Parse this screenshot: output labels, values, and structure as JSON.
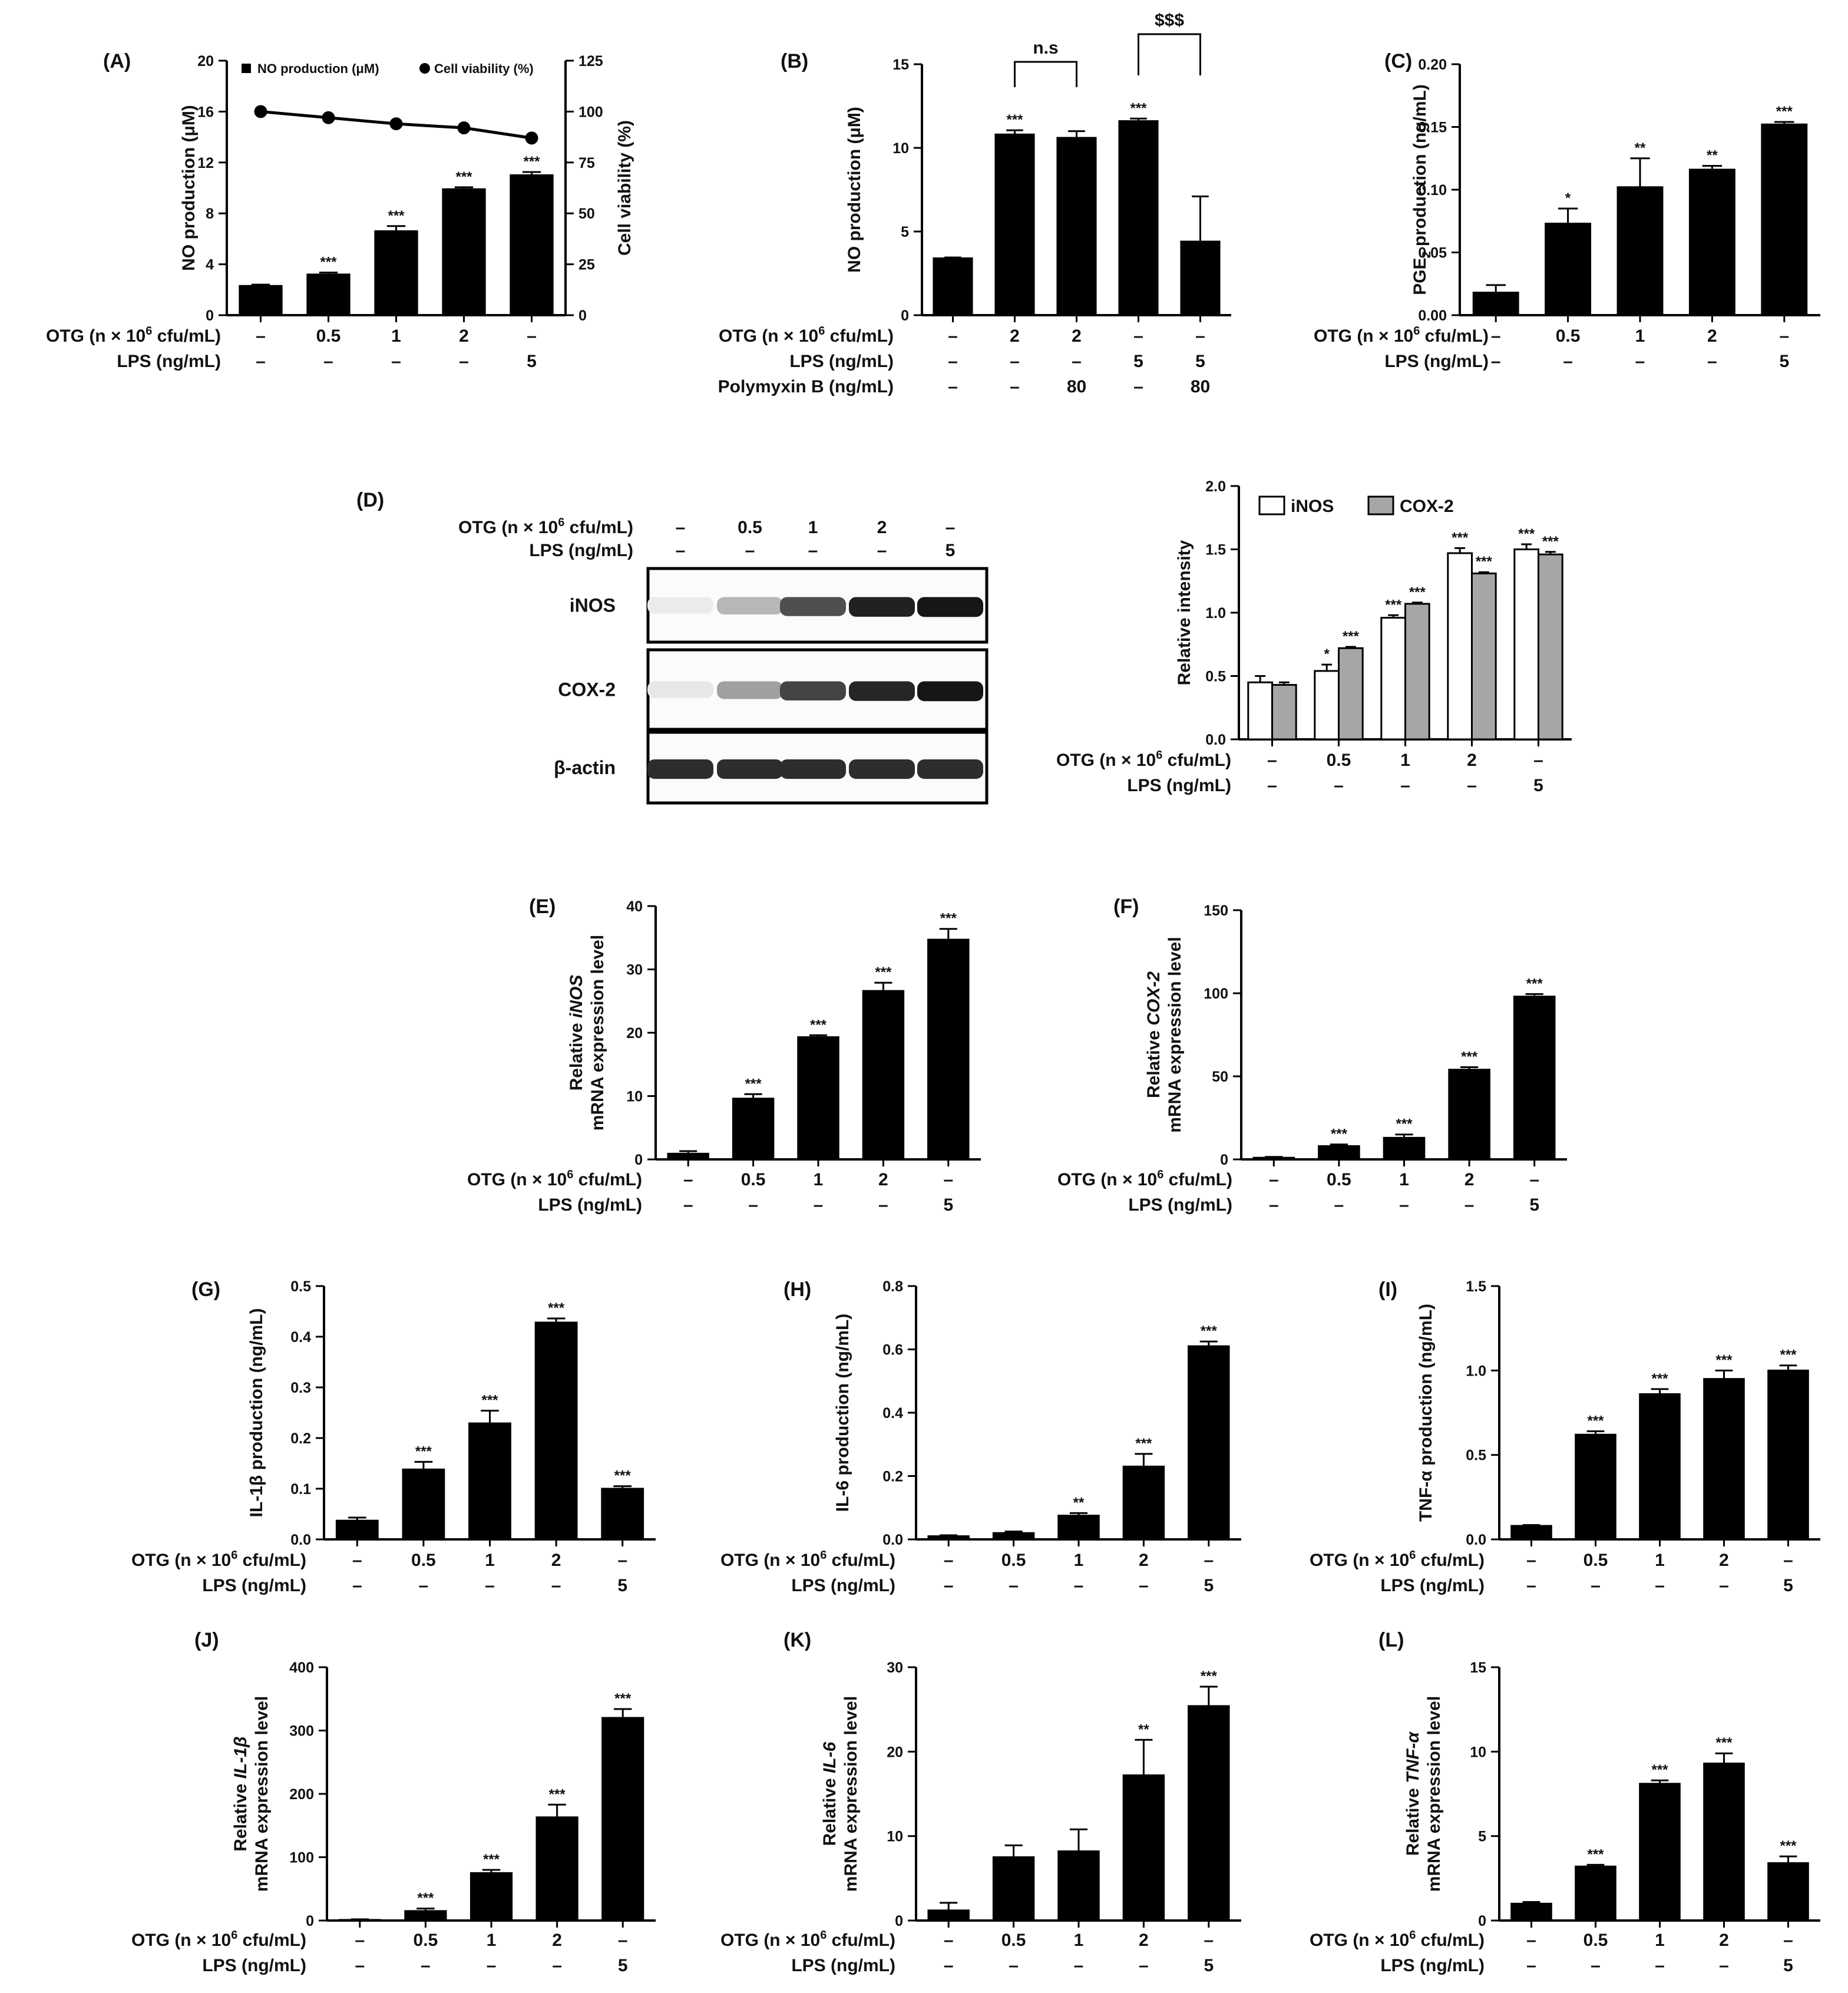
{
  "figure_title": "",
  "colors": {
    "bar": "#000000",
    "inos": "#ffffff",
    "cox2": "#a6a6a6",
    "line": "#000000",
    "axis": "#000000"
  },
  "common": {
    "otg_label_base": "OTG (n × 10",
    "otg_label_sup": "6",
    "otg_label_tail": " cfu/mL)",
    "lps_label": "LPS (ng/mL)",
    "pmb_label": "Polymyxin B (ng/mL)",
    "dash": "–"
  },
  "western_blot": {
    "panel": "(D)",
    "otg_row": [
      "–",
      "0.5",
      "1",
      "2",
      "–"
    ],
    "lps_row": [
      "–",
      "–",
      "–",
      "–",
      "5"
    ],
    "bands": [
      {
        "name": "iNOS",
        "intensities": [
          0.02,
          0.25,
          0.7,
          0.9,
          0.95
        ]
      },
      {
        "name": "COX-2",
        "intensities": [
          0.04,
          0.35,
          0.75,
          0.88,
          0.95
        ]
      },
      {
        "name": "β-actin",
        "intensities": [
          0.85,
          0.85,
          0.85,
          0.85,
          0.85
        ]
      }
    ]
  },
  "chart_data": [
    {
      "id": "A",
      "panel": "(A)",
      "type": "bar",
      "ylabel": "NO production (μM)",
      "ylim": [
        0,
        20
      ],
      "yticks": [
        0,
        4,
        8,
        12,
        16,
        20
      ],
      "y2label": "Cell viability (%)",
      "y2lim": [
        0,
        125
      ],
      "y2ticks": [
        0,
        25,
        50,
        75,
        100,
        125
      ],
      "legend": [
        {
          "marker": "square",
          "label": "NO production (μM)"
        },
        {
          "marker": "circle",
          "label": "Cell viability (%)"
        }
      ],
      "otg": [
        "–",
        "0.5",
        "1",
        "2",
        "–"
      ],
      "lps": [
        "–",
        "–",
        "–",
        "–",
        "5"
      ],
      "series": [
        {
          "name": "NO production (μM)",
          "values": [
            2.3,
            3.2,
            6.6,
            9.9,
            11.0
          ],
          "errors": [
            0.1,
            0.15,
            0.4,
            0.15,
            0.25
          ],
          "sig": [
            "",
            "***",
            "***",
            "***",
            "***"
          ]
        }
      ],
      "line": {
        "name": "Cell viability (%)",
        "values": [
          100,
          97,
          94,
          92,
          87
        ]
      }
    },
    {
      "id": "B",
      "panel": "(B)",
      "type": "bar",
      "ylabel": "NO production (μM)",
      "ylim": [
        0,
        15
      ],
      "yticks": [
        0,
        5,
        10,
        15
      ],
      "otg": [
        "–",
        "2",
        "2",
        "–",
        "–"
      ],
      "lps": [
        "–",
        "–",
        "–",
        "5",
        "5"
      ],
      "pmb": [
        "–",
        "–",
        "80",
        "–",
        "80"
      ],
      "series": [
        {
          "name": "NO production",
          "values": [
            3.4,
            10.8,
            10.6,
            11.6,
            4.4
          ],
          "errors": [
            0.05,
            0.25,
            0.4,
            0.15,
            2.7
          ],
          "sig": [
            "",
            "***",
            "",
            "***",
            ""
          ]
        }
      ],
      "brackets": [
        {
          "from": 1,
          "to": 2,
          "label": "n.s"
        },
        {
          "from": 3,
          "to": 4,
          "label": "$$$"
        }
      ]
    },
    {
      "id": "C",
      "panel": "(C)",
      "type": "bar",
      "ylabel": "PGE",
      "ylabel_sub": "2",
      "ylabel_tail": " production (ng/mL)",
      "ylim": [
        0,
        0.2
      ],
      "yticks": [
        "0.00",
        "0.05",
        "0.10",
        "0.15",
        "0.20"
      ],
      "otg": [
        "–",
        "0.5",
        "1",
        "2",
        "–"
      ],
      "lps": [
        "–",
        "–",
        "–",
        "–",
        "5"
      ],
      "series": [
        {
          "name": "PGE2 production",
          "values": [
            0.018,
            0.073,
            0.102,
            0.116,
            0.152
          ],
          "errors": [
            0.006,
            0.012,
            0.023,
            0.003,
            0.002
          ],
          "sig": [
            "",
            "*",
            "**",
            "**",
            "***"
          ]
        }
      ]
    },
    {
      "id": "D",
      "panel": "",
      "type": "bar",
      "ylabel": "Relative intensity",
      "ylim": [
        0,
        2.0
      ],
      "yticks": [
        "0.0",
        "0.5",
        "1.0",
        "1.5",
        "2.0"
      ],
      "otg": [
        "–",
        "0.5",
        "1",
        "2",
        "–"
      ],
      "lps": [
        "–",
        "–",
        "–",
        "–",
        "5"
      ],
      "legend_position": "top",
      "series": [
        {
          "name": "iNOS",
          "values": [
            0.45,
            0.54,
            0.96,
            1.47,
            1.5
          ],
          "errors": [
            0.05,
            0.05,
            0.02,
            0.04,
            0.04
          ],
          "sig": [
            "",
            "*",
            "***",
            "***",
            "***"
          ]
        },
        {
          "name": "COX-2",
          "values": [
            0.43,
            0.72,
            1.07,
            1.31,
            1.46
          ],
          "errors": [
            0.02,
            0.01,
            0.01,
            0.01,
            0.02
          ],
          "sig": [
            "",
            "***",
            "***",
            "***",
            "***"
          ]
        }
      ]
    },
    {
      "id": "E",
      "panel": "(E)",
      "type": "bar",
      "ylabel_pre": "Relative ",
      "ylabel_italic": "iNOS",
      "ylabel2": "mRNA expression level",
      "ylim": [
        0,
        40
      ],
      "yticks": [
        0,
        10,
        20,
        30,
        40
      ],
      "otg": [
        "–",
        "0.5",
        "1",
        "2",
        "–"
      ],
      "lps": [
        "–",
        "–",
        "–",
        "–",
        "5"
      ],
      "series": [
        {
          "name": "iNOS mRNA",
          "values": [
            0.9,
            9.6,
            19.3,
            26.6,
            34.7
          ],
          "errors": [
            0.4,
            0.7,
            0.3,
            1.3,
            1.7
          ],
          "sig": [
            "",
            "***",
            "***",
            "***",
            "***"
          ]
        }
      ]
    },
    {
      "id": "F",
      "panel": "(F)",
      "type": "bar",
      "ylabel_pre": "Relative ",
      "ylabel_italic": "COX-2",
      "ylabel2": "mRNA expression level",
      "ylim": [
        0,
        150
      ],
      "yticks": [
        0,
        50,
        100,
        150
      ],
      "otg": [
        "–",
        "0.5",
        "1",
        "2",
        "–"
      ],
      "lps": [
        "–",
        "–",
        "–",
        "–",
        "5"
      ],
      "series": [
        {
          "name": "COX-2 mRNA",
          "values": [
            1,
            8,
            13,
            54,
            98
          ],
          "errors": [
            0.5,
            1,
            2,
            1.5,
            1.5
          ],
          "sig": [
            "",
            "***",
            "***",
            "***",
            "***"
          ]
        }
      ]
    },
    {
      "id": "G",
      "panel": "(G)",
      "type": "bar",
      "ylabel": "IL-1β production (ng/mL)",
      "ylim": [
        0,
        0.5
      ],
      "yticks": [
        "0.0",
        "0.1",
        "0.2",
        "0.3",
        "0.4",
        "0.5"
      ],
      "otg": [
        "–",
        "0.5",
        "1",
        "2",
        "–"
      ],
      "lps": [
        "–",
        "–",
        "–",
        "–",
        "5"
      ],
      "series": [
        {
          "name": "IL-1β",
          "values": [
            0.037,
            0.138,
            0.229,
            0.428,
            0.1
          ],
          "errors": [
            0.006,
            0.015,
            0.025,
            0.008,
            0.005
          ],
          "sig": [
            "",
            "***",
            "***",
            "***",
            "***"
          ]
        }
      ]
    },
    {
      "id": "H",
      "panel": "(H)",
      "type": "bar",
      "ylabel": "IL-6 production (ng/mL)",
      "ylim": [
        0,
        0.8
      ],
      "yticks": [
        "0.0",
        "0.2",
        "0.4",
        "0.6",
        "0.8"
      ],
      "otg": [
        "–",
        "0.5",
        "1",
        "2",
        "–"
      ],
      "lps": [
        "–",
        "–",
        "–",
        "–",
        "5"
      ],
      "series": [
        {
          "name": "IL-6",
          "values": [
            0.01,
            0.02,
            0.075,
            0.23,
            0.61
          ],
          "errors": [
            0.003,
            0.005,
            0.008,
            0.04,
            0.015
          ],
          "sig": [
            "",
            "",
            "**",
            "***",
            "***"
          ]
        }
      ]
    },
    {
      "id": "I",
      "panel": "(I)",
      "type": "bar",
      "ylabel": "TNF-α production (ng/mL)",
      "ylim": [
        0,
        1.5
      ],
      "yticks": [
        "0.0",
        "0.5",
        "1.0",
        "1.5"
      ],
      "otg": [
        "–",
        "0.5",
        "1",
        "2",
        "–"
      ],
      "lps": [
        "–",
        "–",
        "–",
        "–",
        "5"
      ],
      "series": [
        {
          "name": "TNF-α",
          "values": [
            0.08,
            0.62,
            0.86,
            0.95,
            1.0
          ],
          "errors": [
            0.005,
            0.02,
            0.03,
            0.05,
            0.03
          ],
          "sig": [
            "",
            "***",
            "***",
            "***",
            "***"
          ]
        }
      ]
    },
    {
      "id": "J",
      "panel": "(J)",
      "type": "bar",
      "ylabel_pre": "Relative ",
      "ylabel_italic": "IL-1β",
      "ylabel2": "mRNA expression level",
      "ylim": [
        0,
        400
      ],
      "yticks": [
        0,
        100,
        200,
        300,
        400
      ],
      "otg": [
        "–",
        "0.5",
        "1",
        "2",
        "–"
      ],
      "lps": [
        "–",
        "–",
        "–",
        "–",
        "5"
      ],
      "series": [
        {
          "name": "IL-1β mRNA",
          "values": [
            1,
            15,
            75,
            163,
            320
          ],
          "errors": [
            1,
            4,
            5,
            20,
            14
          ],
          "sig": [
            "",
            "***",
            "***",
            "***",
            "***"
          ]
        }
      ]
    },
    {
      "id": "K",
      "panel": "(K)",
      "type": "bar",
      "ylabel_pre": "Relative ",
      "ylabel_italic": "IL-6",
      "ylabel2": "mRNA expression level",
      "ylim": [
        0,
        30
      ],
      "yticks": [
        0,
        10,
        20,
        30
      ],
      "otg": [
        "–",
        "0.5",
        "1",
        "2",
        "–"
      ],
      "lps": [
        "–",
        "–",
        "–",
        "–",
        "5"
      ],
      "series": [
        {
          "name": "IL-6 mRNA",
          "values": [
            1.2,
            7.5,
            8.2,
            17.2,
            25.4
          ],
          "errors": [
            0.9,
            1.4,
            2.6,
            4.2,
            2.3
          ],
          "sig": [
            "",
            "",
            "",
            "**",
            "***"
          ]
        }
      ]
    },
    {
      "id": "L",
      "panel": "(L)",
      "type": "bar",
      "ylabel_pre": "Relative ",
      "ylabel_italic": "TNF-α",
      "ylabel2": "mRNA expression level",
      "ylim": [
        0,
        15
      ],
      "yticks": [
        0,
        5,
        10,
        15
      ],
      "otg": [
        "–",
        "0.5",
        "1",
        "2",
        "–"
      ],
      "lps": [
        "–",
        "–",
        "–",
        "–",
        "5"
      ],
      "series": [
        {
          "name": "TNF-α mRNA",
          "values": [
            1.0,
            3.2,
            8.1,
            9.3,
            3.4
          ],
          "errors": [
            0.1,
            0.1,
            0.2,
            0.6,
            0.4
          ],
          "sig": [
            "",
            "***",
            "***",
            "***",
            "***"
          ]
        }
      ]
    }
  ]
}
